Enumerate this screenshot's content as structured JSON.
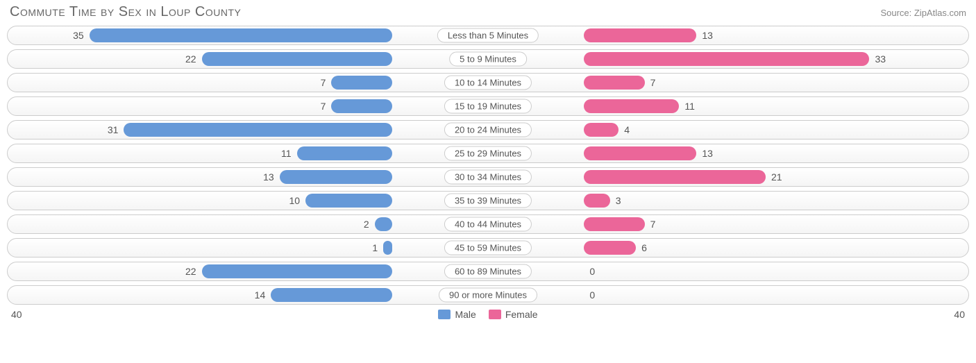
{
  "chart": {
    "title": "Commute Time by Sex in Loup County",
    "source": "Source: ZipAtlas.com",
    "type": "diverging-bar",
    "max_value": 40,
    "axis_left_label": "40",
    "axis_right_label": "40",
    "background_color": "#ffffff",
    "track_border_color": "#cccccc",
    "track_bg_top": "#ffffff",
    "track_bg_bottom": "#f5f5f5",
    "title_color": "#666666",
    "title_fontsize": 20,
    "label_color": "#555555",
    "label_fontsize": 14,
    "category_fontsize": 13,
    "series": [
      {
        "key": "male",
        "label": "Male",
        "color": "#6699d8",
        "side": "left"
      },
      {
        "key": "female",
        "label": "Female",
        "color": "#eb6699",
        "side": "right"
      }
    ],
    "rows": [
      {
        "category": "Less than 5 Minutes",
        "male": 35,
        "female": 13
      },
      {
        "category": "5 to 9 Minutes",
        "male": 22,
        "female": 33
      },
      {
        "category": "10 to 14 Minutes",
        "male": 7,
        "female": 7
      },
      {
        "category": "15 to 19 Minutes",
        "male": 7,
        "female": 11
      },
      {
        "category": "20 to 24 Minutes",
        "male": 31,
        "female": 4
      },
      {
        "category": "25 to 29 Minutes",
        "male": 11,
        "female": 13
      },
      {
        "category": "30 to 34 Minutes",
        "male": 13,
        "female": 21
      },
      {
        "category": "35 to 39 Minutes",
        "male": 10,
        "female": 3
      },
      {
        "category": "40 to 44 Minutes",
        "male": 2,
        "female": 7
      },
      {
        "category": "45 to 59 Minutes",
        "male": 1,
        "female": 6
      },
      {
        "category": "60 to 89 Minutes",
        "male": 22,
        "female": 0
      },
      {
        "category": "90 or more Minutes",
        "male": 14,
        "female": 0
      }
    ]
  }
}
